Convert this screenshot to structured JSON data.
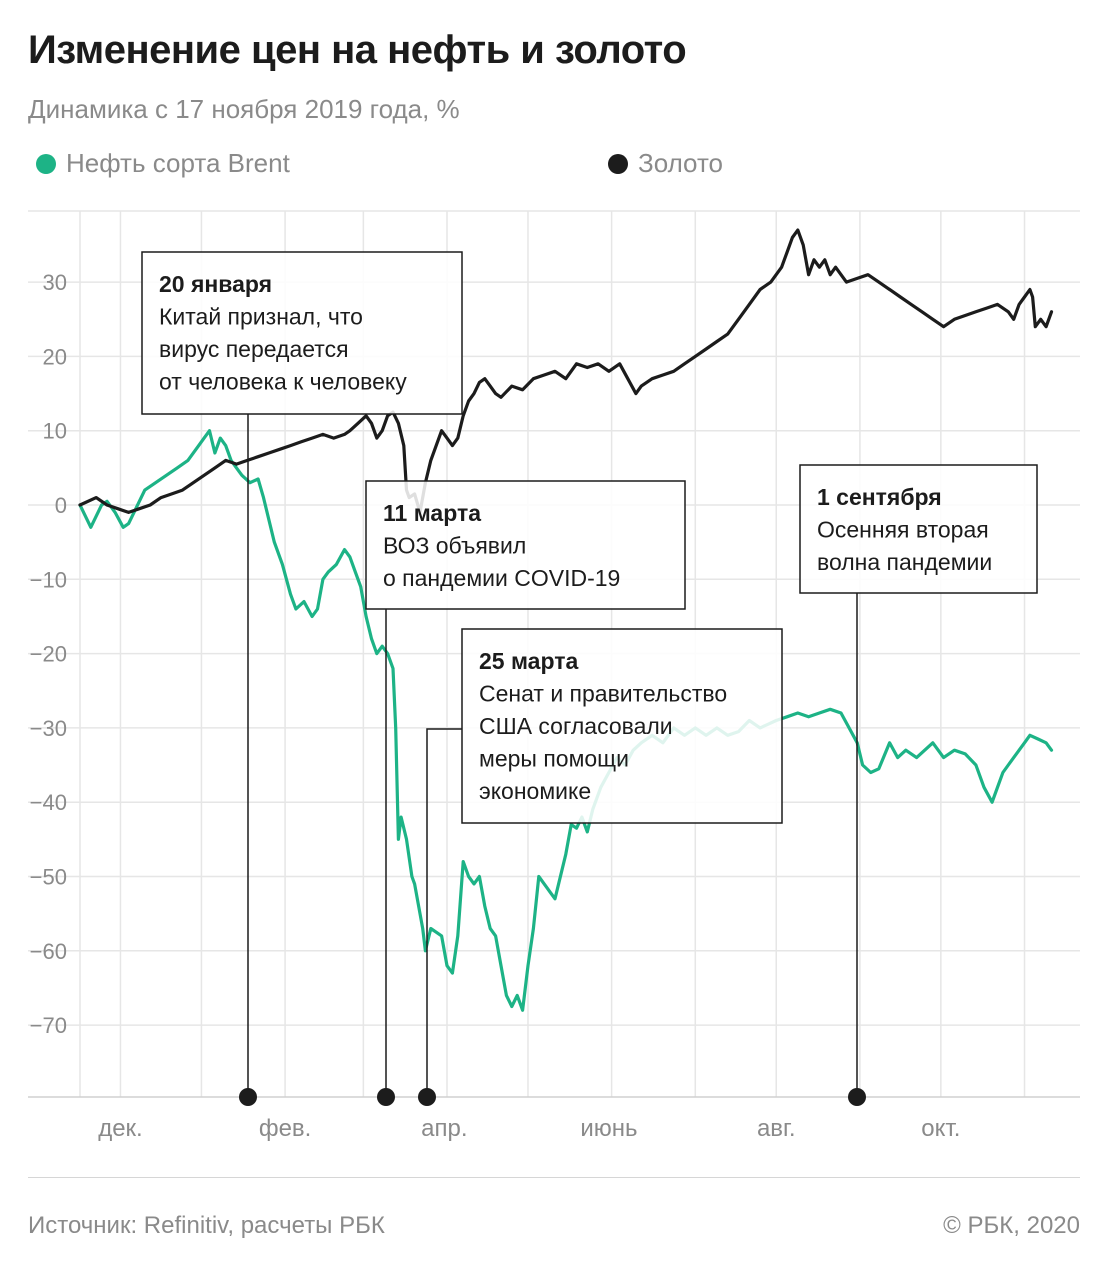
{
  "title": "Изменение цен на нефть и золото",
  "subtitle": "Динамика с 17 ноября 2019 года, %",
  "legend": [
    {
      "label": "Нефть сорта Brent",
      "color": "#1db386"
    },
    {
      "label": "Золото",
      "color": "#1c1c1c"
    }
  ],
  "source": "Источник: Refinitiv, расчеты РБК",
  "copyright": "© РБК, 2020",
  "chart_data": {
    "type": "line",
    "ylim": [
      -78,
      40
    ],
    "yticks": [
      30,
      20,
      10,
      0,
      -10,
      -20,
      -30,
      -40,
      -50,
      -60,
      -70
    ],
    "ytick_labels": [
      "30",
      "20",
      "10",
      "0",
      "−10",
      "−20",
      "−30",
      "−40",
      "−50",
      "−60",
      "−70"
    ],
    "x_range_days": [
      0,
      365
    ],
    "month_gridlines_days": [
      15,
      45,
      76,
      105,
      136,
      166,
      197,
      228,
      258,
      289,
      319,
      350
    ],
    "xtick_labels": [
      {
        "label": "дек.",
        "day": 15
      },
      {
        "label": "фев.",
        "day": 76
      },
      {
        "label": "апр.",
        "day": 135
      },
      {
        "label": "июнь",
        "day": 196
      },
      {
        "label": "авг.",
        "day": 258
      },
      {
        "label": "окт.",
        "day": 319
      }
    ],
    "series": [
      {
        "name": "Нефть сорта Brent",
        "color": "#1db386",
        "points": [
          [
            0,
            0
          ],
          [
            4,
            -3
          ],
          [
            8,
            0
          ],
          [
            10,
            0.5
          ],
          [
            13,
            -1
          ],
          [
            16,
            -3
          ],
          [
            18,
            -2.5
          ],
          [
            20,
            -1
          ],
          [
            24,
            2
          ],
          [
            28,
            3
          ],
          [
            32,
            4
          ],
          [
            36,
            5
          ],
          [
            40,
            6
          ],
          [
            44,
            8
          ],
          [
            46,
            9
          ],
          [
            48,
            10
          ],
          [
            50,
            7
          ],
          [
            52,
            9
          ],
          [
            54,
            8
          ],
          [
            56,
            6
          ],
          [
            58,
            5
          ],
          [
            60,
            4
          ],
          [
            63,
            3
          ],
          [
            66,
            3.5
          ],
          [
            68,
            1
          ],
          [
            70,
            -2
          ],
          [
            72,
            -5
          ],
          [
            75,
            -8
          ],
          [
            78,
            -12
          ],
          [
            80,
            -14
          ],
          [
            83,
            -13
          ],
          [
            86,
            -15
          ],
          [
            88,
            -14
          ],
          [
            90,
            -10
          ],
          [
            92,
            -9
          ],
          [
            95,
            -8
          ],
          [
            98,
            -6
          ],
          [
            100,
            -7
          ],
          [
            102,
            -9
          ],
          [
            104,
            -11
          ],
          [
            106,
            -15
          ],
          [
            108,
            -18
          ],
          [
            110,
            -20
          ],
          [
            112,
            -19
          ],
          [
            114,
            -20
          ],
          [
            116,
            -22
          ],
          [
            117,
            -30
          ],
          [
            118,
            -45
          ],
          [
            119,
            -42
          ],
          [
            121,
            -45
          ],
          [
            123,
            -50
          ],
          [
            124,
            -51
          ],
          [
            126,
            -55
          ],
          [
            127,
            -57
          ],
          [
            128,
            -60
          ],
          [
            130,
            -57
          ],
          [
            132,
            -57.5
          ],
          [
            134,
            -58
          ],
          [
            135,
            -60
          ],
          [
            136,
            -62
          ],
          [
            138,
            -63
          ],
          [
            140,
            -58
          ],
          [
            142,
            -48
          ],
          [
            144,
            -50
          ],
          [
            146,
            -51
          ],
          [
            148,
            -50
          ],
          [
            150,
            -54
          ],
          [
            152,
            -57
          ],
          [
            154,
            -58
          ],
          [
            156,
            -62
          ],
          [
            158,
            -66
          ],
          [
            160,
            -67.5
          ],
          [
            162,
            -66
          ],
          [
            164,
            -68
          ],
          [
            166,
            -62
          ],
          [
            168,
            -57
          ],
          [
            170,
            -50
          ],
          [
            172,
            -51
          ],
          [
            174,
            -52
          ],
          [
            176,
            -53
          ],
          [
            178,
            -50
          ],
          [
            180,
            -47
          ],
          [
            182,
            -43
          ],
          [
            184,
            -43.5
          ],
          [
            186,
            -42
          ],
          [
            188,
            -44
          ],
          [
            190,
            -41
          ],
          [
            193,
            -38
          ],
          [
            196,
            -36
          ],
          [
            199,
            -34
          ],
          [
            202,
            -35
          ],
          [
            205,
            -33
          ],
          [
            208,
            -32
          ],
          [
            212,
            -31
          ],
          [
            216,
            -32
          ],
          [
            220,
            -30
          ],
          [
            224,
            -31
          ],
          [
            228,
            -30
          ],
          [
            232,
            -31
          ],
          [
            236,
            -30
          ],
          [
            240,
            -31
          ],
          [
            244,
            -30.5
          ],
          [
            248,
            -29
          ],
          [
            252,
            -30
          ],
          [
            255,
            -29.5
          ],
          [
            258,
            -29
          ],
          [
            262,
            -28.5
          ],
          [
            266,
            -28
          ],
          [
            270,
            -28.5
          ],
          [
            274,
            -28
          ],
          [
            278,
            -27.5
          ],
          [
            282,
            -28
          ],
          [
            285,
            -30
          ],
          [
            288,
            -32
          ],
          [
            290,
            -35
          ],
          [
            293,
            -36
          ],
          [
            296,
            -35.5
          ],
          [
            300,
            -32
          ],
          [
            303,
            -34
          ],
          [
            306,
            -33
          ],
          [
            310,
            -34
          ],
          [
            313,
            -33
          ],
          [
            316,
            -32
          ],
          [
            320,
            -34
          ],
          [
            324,
            -33
          ],
          [
            328,
            -33.5
          ],
          [
            332,
            -35
          ],
          [
            335,
            -38
          ],
          [
            338,
            -40
          ],
          [
            340,
            -38
          ],
          [
            342,
            -36
          ],
          [
            344,
            -35
          ],
          [
            346,
            -34
          ],
          [
            348,
            -33
          ],
          [
            350,
            -32
          ],
          [
            352,
            -31
          ],
          [
            355,
            -31.5
          ],
          [
            358,
            -32
          ],
          [
            360,
            -33
          ]
        ]
      },
      {
        "name": "Золото",
        "color": "#1c1c1c",
        "points": [
          [
            0,
            0
          ],
          [
            6,
            1
          ],
          [
            10,
            0
          ],
          [
            14,
            -0.5
          ],
          [
            18,
            -1
          ],
          [
            22,
            -0.5
          ],
          [
            26,
            0
          ],
          [
            30,
            1
          ],
          [
            34,
            1.5
          ],
          [
            38,
            2
          ],
          [
            42,
            3
          ],
          [
            46,
            4
          ],
          [
            50,
            5
          ],
          [
            54,
            6
          ],
          [
            58,
            5.5
          ],
          [
            62,
            6
          ],
          [
            66,
            6.5
          ],
          [
            70,
            7
          ],
          [
            74,
            7.5
          ],
          [
            78,
            8
          ],
          [
            82,
            8.5
          ],
          [
            86,
            9
          ],
          [
            90,
            9.5
          ],
          [
            94,
            9
          ],
          [
            98,
            9.5
          ],
          [
            100,
            10
          ],
          [
            103,
            11
          ],
          [
            106,
            12
          ],
          [
            108,
            11
          ],
          [
            110,
            9
          ],
          [
            112,
            10
          ],
          [
            114,
            12
          ],
          [
            116,
            12.5
          ],
          [
            118,
            11
          ],
          [
            120,
            8
          ],
          [
            121,
            2
          ],
          [
            122,
            1
          ],
          [
            124,
            1.5
          ],
          [
            126,
            -1
          ],
          [
            128,
            3
          ],
          [
            130,
            6
          ],
          [
            132,
            8
          ],
          [
            134,
            10
          ],
          [
            136,
            9
          ],
          [
            138,
            8
          ],
          [
            140,
            9
          ],
          [
            142,
            12
          ],
          [
            144,
            14
          ],
          [
            146,
            15
          ],
          [
            148,
            16.5
          ],
          [
            150,
            17
          ],
          [
            152,
            16
          ],
          [
            154,
            15
          ],
          [
            156,
            14.5
          ],
          [
            160,
            16
          ],
          [
            164,
            15.5
          ],
          [
            168,
            17
          ],
          [
            172,
            17.5
          ],
          [
            176,
            18
          ],
          [
            180,
            17
          ],
          [
            184,
            19
          ],
          [
            188,
            18.5
          ],
          [
            192,
            19
          ],
          [
            196,
            18
          ],
          [
            200,
            19
          ],
          [
            203,
            17
          ],
          [
            206,
            15
          ],
          [
            208,
            16
          ],
          [
            212,
            17
          ],
          [
            216,
            17.5
          ],
          [
            220,
            18
          ],
          [
            224,
            19
          ],
          [
            228,
            20
          ],
          [
            232,
            21
          ],
          [
            236,
            22
          ],
          [
            240,
            23
          ],
          [
            244,
            25
          ],
          [
            248,
            27
          ],
          [
            252,
            29
          ],
          [
            256,
            30
          ],
          [
            260,
            32
          ],
          [
            262,
            34
          ],
          [
            264,
            36
          ],
          [
            266,
            37
          ],
          [
            268,
            35
          ],
          [
            270,
            31
          ],
          [
            272,
            33
          ],
          [
            274,
            32
          ],
          [
            276,
            33
          ],
          [
            278,
            31
          ],
          [
            280,
            32
          ],
          [
            284,
            30
          ],
          [
            288,
            30.5
          ],
          [
            292,
            31
          ],
          [
            296,
            30
          ],
          [
            300,
            29
          ],
          [
            304,
            28
          ],
          [
            308,
            27
          ],
          [
            312,
            26
          ],
          [
            316,
            25
          ],
          [
            320,
            24
          ],
          [
            324,
            25
          ],
          [
            328,
            25.5
          ],
          [
            332,
            26
          ],
          [
            336,
            26.5
          ],
          [
            340,
            27
          ],
          [
            344,
            26
          ],
          [
            346,
            25
          ],
          [
            348,
            27
          ],
          [
            350,
            28
          ],
          [
            352,
            29
          ],
          [
            353,
            28
          ],
          [
            354,
            24
          ],
          [
            356,
            25
          ],
          [
            358,
            24
          ],
          [
            360,
            26
          ]
        ]
      }
    ],
    "events": [
      {
        "date": "20 января",
        "day": 63,
        "lines": [
          "Китай признал, что",
          "вирус передается",
          "от человека к человеку"
        ]
      },
      {
        "date": "11 марта",
        "day": 114,
        "lines": [
          "ВОЗ объявил",
          "о пандемии COVID-19"
        ]
      },
      {
        "date": "25 марта",
        "day": 128,
        "lines": [
          "Сенат и правительство",
          "США согласовали",
          "меры помощи",
          "экономике"
        ]
      },
      {
        "date": "1 сентября",
        "day": 288,
        "lines": [
          "Осенняя вторая",
          "волна пандемии"
        ]
      }
    ]
  }
}
